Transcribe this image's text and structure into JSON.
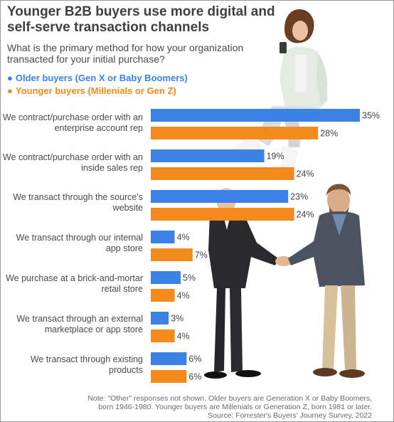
{
  "header": {
    "title": "Younger B2B buyers use more digital and self-serve transaction channels",
    "question": "What is the primary method for how your organization transacted for your initial purchase?"
  },
  "legend": {
    "older": "Older buyers (Gen X or Baby Boomers)",
    "younger": "Younger buyers (Millenials or Gen Z)"
  },
  "colors": {
    "older": "#3b82e6",
    "younger": "#f48a1c"
  },
  "chart_data": {
    "type": "bar",
    "orientation": "horizontal",
    "categories": [
      "We contract/purchase order with an enterprise account rep",
      "We contract/purchase order with an inside sales rep",
      "We transact through the source's website",
      "We transact through our internal app store",
      "We purchase at a brick-and-mortar retail store",
      "We transact through an external marketplace or app store",
      "We transact through existing products"
    ],
    "series": [
      {
        "name": "Older buyers (Gen X or Baby Boomers)",
        "values": [
          35,
          19,
          23,
          4,
          5,
          3,
          6
        ]
      },
      {
        "name": "Younger buyers (Millenials or Gen Z)",
        "values": [
          28,
          24,
          24,
          7,
          4,
          4,
          6
        ]
      }
    ],
    "value_labels": [
      [
        "35%",
        "28%"
      ],
      [
        "19%",
        "24%"
      ],
      [
        "23%",
        "24%"
      ],
      [
        "4%",
        "7%"
      ],
      [
        "5%",
        "4%"
      ],
      [
        "3%",
        "4%"
      ],
      [
        "6%",
        "6%"
      ]
    ],
    "unit": "%",
    "xlim": [
      0,
      35
    ],
    "grid": false,
    "legend_position": "top-left"
  },
  "footnote": {
    "line1": "Note: \"Other\" responses not shown. Older buyers are Generation X or Baby Boomers,",
    "line2": "born 1946-1980. Younger buyers are Millenials or Generation Z, born 1981 or later.",
    "line3": "Source: Forrester's Buyers' Journey Survey, 2022"
  }
}
